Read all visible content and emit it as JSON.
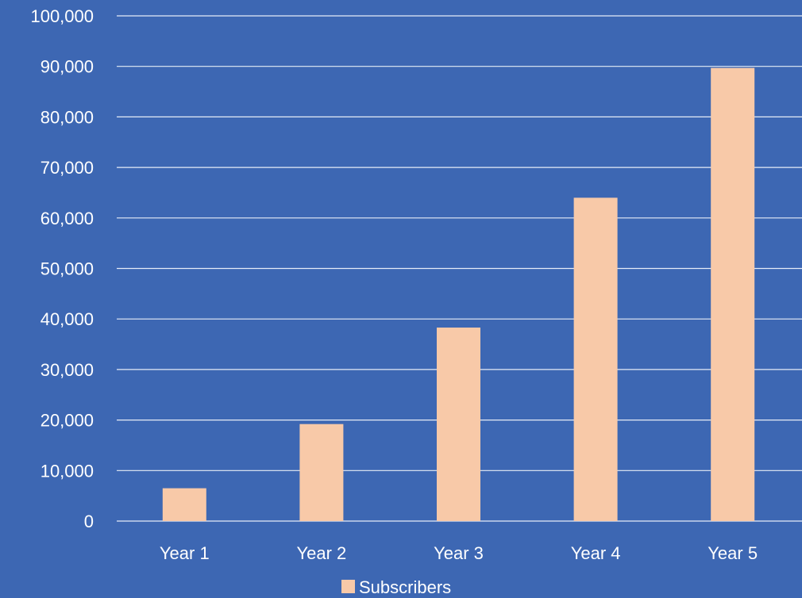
{
  "chart_data": {
    "type": "bar",
    "categories": [
      "Year 1",
      "Year 2",
      "Year 3",
      "Year 4",
      "Year 5"
    ],
    "series": [
      {
        "name": "Subscribers",
        "values": [
          6500,
          19200,
          38300,
          64000,
          89700
        ]
      }
    ],
    "yticks": [
      "0",
      "10,000",
      "20,000",
      "30,000",
      "40,000",
      "50,000",
      "60,000",
      "70,000",
      "80,000",
      "90,000",
      "100,000"
    ],
    "ylim": [
      0,
      100000
    ],
    "grid": true,
    "legend_position": "bottom-center"
  },
  "colors": {
    "background": "#3d67b3",
    "bar": "#f8c9a8",
    "grid": "#e6ecf7",
    "text": "#ffffff"
  }
}
